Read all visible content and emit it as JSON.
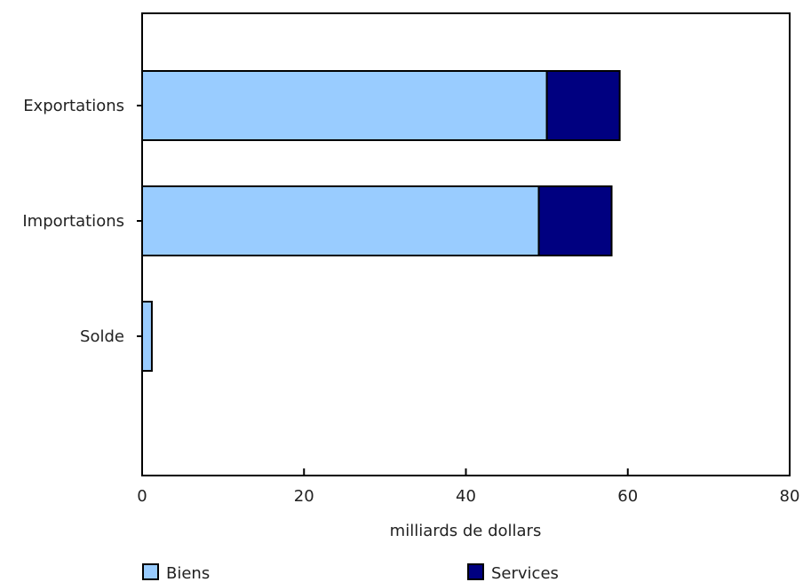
{
  "chart_data": {
    "type": "bar",
    "orientation": "horizontal",
    "stacked": true,
    "categories": [
      "Exportations",
      "Importations",
      "Solde"
    ],
    "series": [
      {
        "name": "Biens",
        "values": [
          50,
          49,
          1.2
        ],
        "color": "#99ccff"
      },
      {
        "name": "Services",
        "values": [
          9,
          9,
          0
        ],
        "color": "#000080"
      }
    ],
    "xlabel": "milliards de dollars",
    "ylabel": "",
    "xlim": [
      0,
      80
    ],
    "xticks": [
      0,
      20,
      40,
      60,
      80
    ],
    "grid": false,
    "legend_position": "bottom"
  }
}
